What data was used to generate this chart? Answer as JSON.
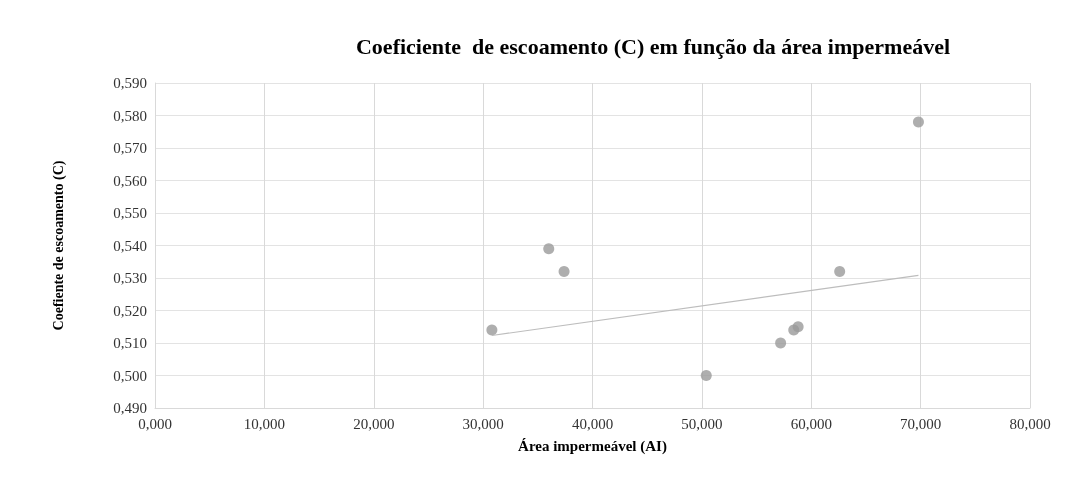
{
  "chart_data": {
    "type": "scatter",
    "title": "Coeficiente  de escoamento (C) em função da área impermeável",
    "xlabel": "Área impermeável (AI)",
    "ylabel": "Coefiente de escoamento (C)",
    "xlim": [
      0,
      80
    ],
    "xticks": [
      {
        "value": 0,
        "label": "0,000"
      },
      {
        "value": 10,
        "label": "10,000"
      },
      {
        "value": 20,
        "label": "20,000"
      },
      {
        "value": 30,
        "label": "30,000"
      },
      {
        "value": 40,
        "label": "40,000"
      },
      {
        "value": 50,
        "label": "50,000"
      },
      {
        "value": 60,
        "label": "60,000"
      },
      {
        "value": 70,
        "label": "70,000"
      },
      {
        "value": 80,
        "label": "80,000"
      }
    ],
    "ylim": [
      0.49,
      0.59
    ],
    "yticks": [
      {
        "value": 0.49,
        "label": "0,490"
      },
      {
        "value": 0.5,
        "label": "0,500"
      },
      {
        "value": 0.51,
        "label": "0,510"
      },
      {
        "value": 0.52,
        "label": "0,520"
      },
      {
        "value": 0.53,
        "label": "0,530"
      },
      {
        "value": 0.54,
        "label": "0,540"
      },
      {
        "value": 0.55,
        "label": "0,550"
      },
      {
        "value": 0.56,
        "label": "0,560"
      },
      {
        "value": 0.57,
        "label": "0,570"
      },
      {
        "value": 0.58,
        "label": "0,580"
      },
      {
        "value": 0.59,
        "label": "0,590"
      }
    ],
    "grid": true,
    "marker": "circle",
    "series": [
      {
        "type": "scatter",
        "color": "#9a9a9a",
        "x": [
          30.8,
          36.0,
          37.4,
          50.4,
          57.2,
          58.4,
          58.8,
          62.6,
          69.8
        ],
        "values": [
          0.514,
          0.539,
          0.532,
          0.5,
          0.51,
          0.514,
          0.515,
          0.532,
          0.578
        ]
      },
      {
        "type": "line",
        "color": "#bdbdbd",
        "marker": "none",
        "line_style": "solid",
        "x": [
          30.8,
          69.8
        ],
        "values": [
          0.5123,
          0.5308
        ]
      }
    ]
  }
}
